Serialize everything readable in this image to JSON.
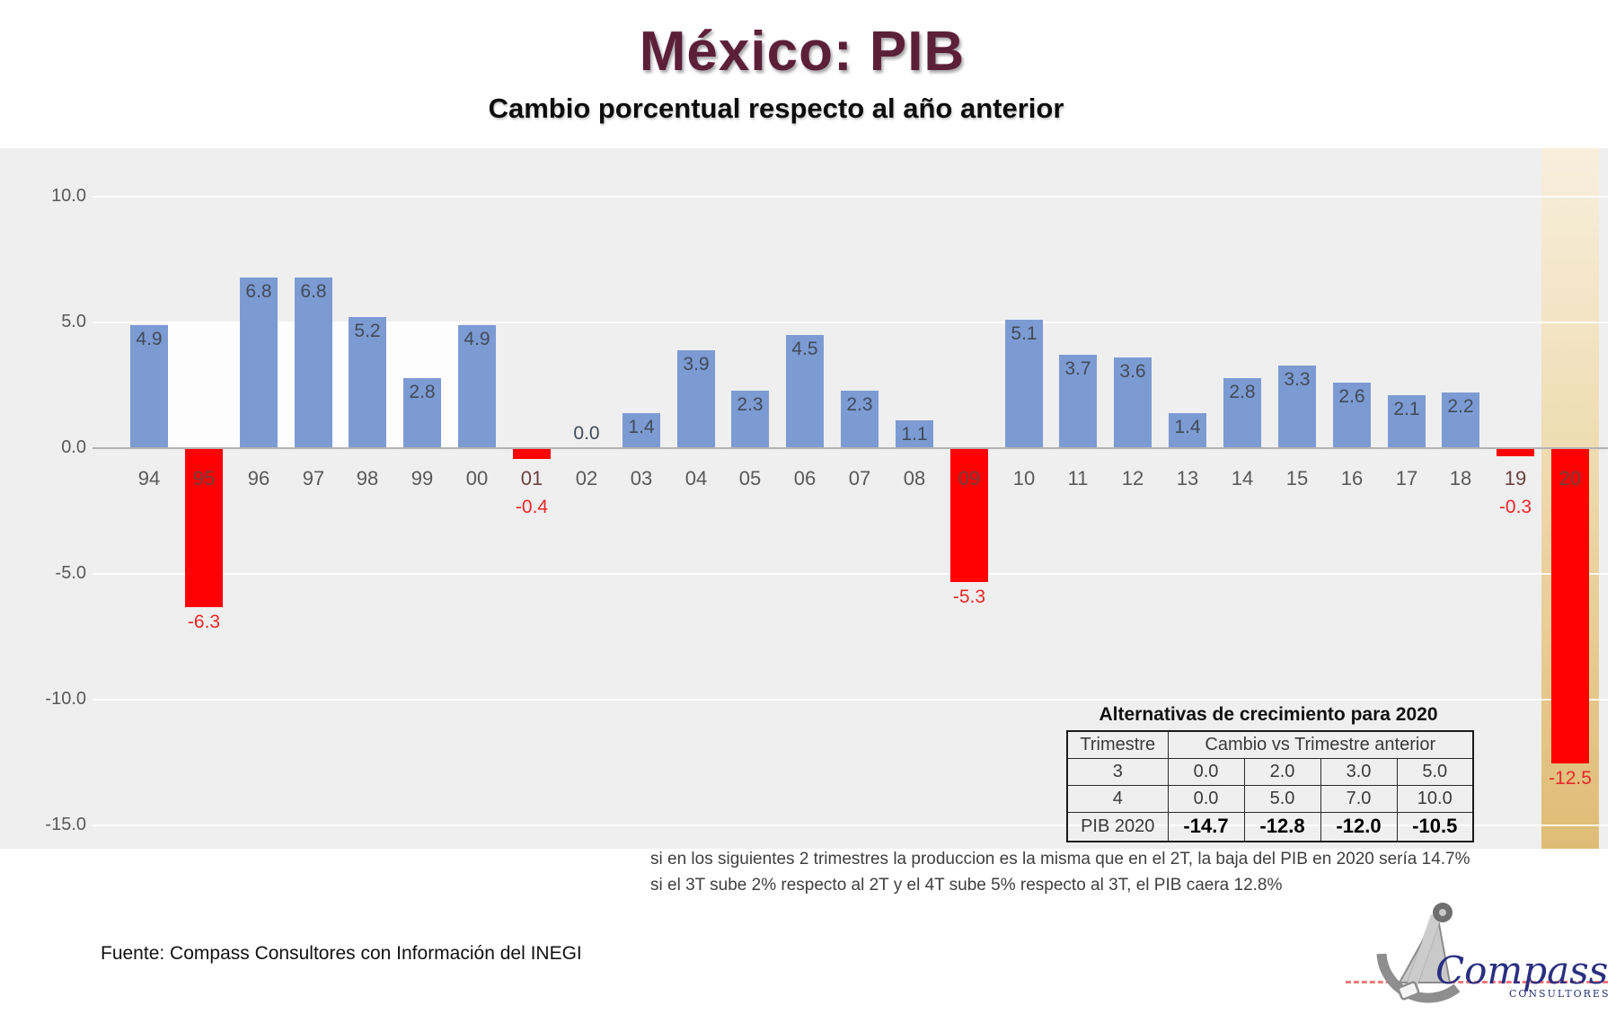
{
  "title": "México: PIB",
  "subtitle": "Cambio porcentual respecto al año anterior",
  "chart_data": {
    "type": "bar",
    "categories": [
      "94",
      "95",
      "96",
      "97",
      "98",
      "99",
      "00",
      "01",
      "02",
      "03",
      "04",
      "05",
      "06",
      "07",
      "08",
      "09",
      "10",
      "11",
      "12",
      "13",
      "14",
      "15",
      "16",
      "17",
      "18",
      "19",
      "20"
    ],
    "values": [
      4.9,
      -6.3,
      6.8,
      6.8,
      5.2,
      2.8,
      4.9,
      -0.4,
      0.0,
      1.4,
      3.9,
      2.3,
      4.5,
      2.3,
      1.1,
      -5.3,
      5.1,
      3.7,
      3.6,
      1.4,
      2.8,
      3.3,
      2.6,
      2.1,
      2.2,
      -0.3,
      -12.5
    ],
    "title": "México: PIB",
    "xlabel": "",
    "ylabel": "",
    "ylim": [
      -15,
      12.5
    ],
    "yticks": [
      10,
      5,
      0,
      -5,
      -10,
      -15
    ],
    "ytick_labels": [
      "10.0",
      "5.0",
      "0.0",
      "-5.0",
      "-10.0",
      "-15.0"
    ],
    "grid": true,
    "legend": false,
    "highlighted_category": "20",
    "colors": {
      "positive_bar": "#7c9bd3",
      "negative_bar": "#fe0202",
      "negative_label": "#e82828",
      "positive_label": "#424b58",
      "category_label": "#595959",
      "highlight_band_top": "#f7efdd",
      "highlight_band_bottom": "#dfbc76",
      "plot_background": "#f0efef",
      "title_color": "#5c1f38"
    }
  },
  "table": {
    "title": "Alternativas de crecimiento para 2020",
    "header_col1": "Trimestre",
    "header_col2": "Cambio vs Trimestre anterior",
    "rows": [
      {
        "label": "3",
        "values": [
          "0.0",
          "2.0",
          "3.0",
          "5.0"
        ],
        "bold": false
      },
      {
        "label": "4",
        "values": [
          "0.0",
          "5.0",
          "7.0",
          "10.0"
        ],
        "bold": false
      },
      {
        "label": "PIB 2020",
        "values": [
          "-14.7",
          "-12.8",
          "-12.0",
          "-10.5"
        ],
        "bold": true
      }
    ]
  },
  "notes": [
    "si en los siguientes 2 trimestres la produccion es la misma que en el 2T, la baja del PIB en 2020 sería 14.7%",
    "si el 3T sube 2% respecto al 2T y el 4T sube 5% respecto al 3T, el PIB caera 12.8%"
  ],
  "source": "Fuente: Compass Consultores con Información del INEGI",
  "logo": {
    "brand": "Compass",
    "tagline": "CONSULTORES"
  }
}
